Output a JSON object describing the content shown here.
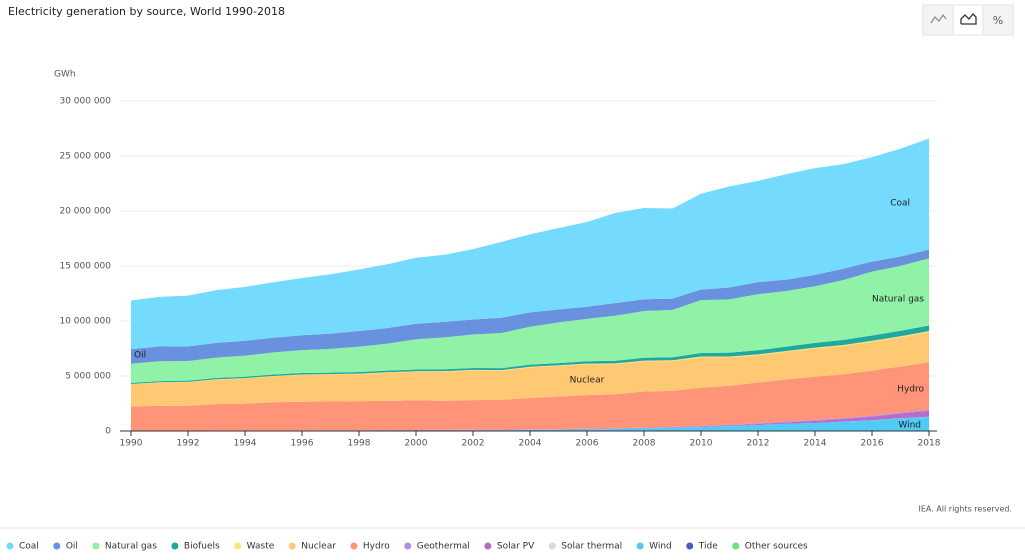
{
  "chart_data": {
    "type": "stacked-area",
    "title": "Electricity generation by source, World 1990-2018",
    "y_label": "GWh",
    "credit": "IEA. All rights reserved.",
    "controls": [
      "Line",
      "Area",
      "%"
    ],
    "x": [
      1990,
      1991,
      1992,
      1993,
      1994,
      1995,
      1996,
      1997,
      1998,
      1999,
      2000,
      2001,
      2002,
      2003,
      2004,
      2005,
      2006,
      2007,
      2008,
      2009,
      2010,
      2011,
      2012,
      2013,
      2014,
      2015,
      2016,
      2017,
      2018
    ],
    "xlim": [
      1990,
      2018
    ],
    "xticks": [
      1990,
      1992,
      1994,
      1996,
      1998,
      2000,
      2002,
      2004,
      2006,
      2008,
      2010,
      2012,
      2014,
      2016,
      2018
    ],
    "ylim": [
      0,
      30000000
    ],
    "yticks": [
      {
        "value": 0,
        "label": "0"
      },
      {
        "value": 5000000,
        "label": "5 000 000"
      },
      {
        "value": 10000000,
        "label": "10 000 000"
      },
      {
        "value": 15000000,
        "label": "15 000 000"
      },
      {
        "value": 20000000,
        "label": "20 000 000"
      },
      {
        "value": 25000000,
        "label": "25 000 000"
      },
      {
        "value": 30000000,
        "label": "30 000 000"
      }
    ],
    "grid": true,
    "annotations": [
      "Oil",
      "Nuclear",
      "Coal",
      "Natural gas",
      "Hydro",
      "Wind"
    ],
    "series": [
      {
        "name": "Coal",
        "color": "#74dbff",
        "values": [
          4425000,
          4520000,
          4610000,
          4800000,
          4900000,
          5050000,
          5200000,
          5400000,
          5600000,
          5800000,
          6000000,
          6100000,
          6400000,
          6900000,
          7100000,
          7400000,
          7700000,
          8200000,
          8300000,
          8200000,
          8700000,
          9200000,
          9200000,
          9600000,
          9700000,
          9500000,
          9500000,
          9800000,
          10100000
        ]
      },
      {
        "name": "Oil",
        "color": "#6a91dd",
        "values": [
          1320000,
          1340000,
          1330000,
          1330000,
          1350000,
          1330000,
          1360000,
          1380000,
          1420000,
          1420000,
          1410000,
          1410000,
          1360000,
          1380000,
          1300000,
          1180000,
          1110000,
          1150000,
          1070000,
          1020000,
          970000,
          1070000,
          1100000,
          1030000,
          1040000,
          1030000,
          910000,
          850000,
          800000
        ]
      },
      {
        "name": "Natural gas",
        "color": "#8ff2a6",
        "values": [
          1750000,
          1800000,
          1790000,
          1850000,
          1920000,
          2010000,
          2070000,
          2160000,
          2300000,
          2450000,
          2750000,
          2900000,
          3050000,
          3200000,
          3450000,
          3700000,
          3850000,
          4100000,
          4250000,
          4300000,
          4800000,
          4850000,
          5100000,
          5050000,
          5150000,
          5450000,
          5800000,
          5900000,
          6100000
        ]
      },
      {
        "name": "Biofuels",
        "color": "#1fa89d",
        "values": [
          100000,
          110000,
          115000,
          120000,
          125000,
          130000,
          135000,
          140000,
          145000,
          150000,
          155000,
          160000,
          170000,
          180000,
          190000,
          200000,
          215000,
          235000,
          255000,
          280000,
          320000,
          345000,
          375000,
          400000,
          430000,
          460000,
          480000,
          500000,
          520000
        ]
      },
      {
        "name": "Waste",
        "color": "#ffe27a",
        "values": [
          25000,
          28000,
          30000,
          33000,
          36000,
          40000,
          43000,
          46000,
          50000,
          52000,
          55000,
          58000,
          60000,
          63000,
          66000,
          68000,
          70000,
          72000,
          74000,
          76000,
          80000,
          85000,
          88000,
          90000,
          93000,
          98000,
          102000,
          106000,
          110000
        ]
      },
      {
        "name": "Nuclear",
        "color": "#ffc973",
        "values": [
          2010000,
          2110000,
          2130000,
          2230000,
          2290000,
          2350000,
          2440000,
          2430000,
          2460000,
          2560000,
          2590000,
          2650000,
          2690000,
          2640000,
          2770000,
          2770000,
          2800000,
          2740000,
          2740000,
          2700000,
          2760000,
          2580000,
          2470000,
          2490000,
          2540000,
          2570000,
          2610000,
          2640000,
          2710000
        ]
      },
      {
        "name": "Hydro",
        "color": "#ff9478",
        "values": [
          2190000,
          2240000,
          2250000,
          2390000,
          2430000,
          2560000,
          2600000,
          2630000,
          2640000,
          2650000,
          2700000,
          2640000,
          2690000,
          2700000,
          2850000,
          2960000,
          3050000,
          3090000,
          3280000,
          3280000,
          3480000,
          3530000,
          3700000,
          3830000,
          3950000,
          3970000,
          4100000,
          4180000,
          4320000
        ]
      },
      {
        "name": "Geothermal",
        "color": "#b28de8",
        "values": [
          36000,
          38000,
          39000,
          40000,
          41000,
          40000,
          42000,
          44000,
          46000,
          50000,
          52000,
          53000,
          54000,
          56000,
          57000,
          58000,
          59000,
          60000,
          65000,
          67000,
          68000,
          70000,
          70000,
          71000,
          74000,
          80000,
          82000,
          86000,
          89000
        ]
      },
      {
        "name": "Solar PV",
        "color": "#b56dc8",
        "values": [
          0,
          0,
          0,
          0,
          0,
          0,
          0,
          0,
          1000,
          1000,
          1000,
          1000,
          2000,
          2000,
          3000,
          4000,
          5000,
          7000,
          12000,
          20000,
          32000,
          62000,
          97000,
          134000,
          190000,
          250000,
          330000,
          440000,
          550000
        ]
      },
      {
        "name": "Solar thermal",
        "color": "#d9d9d9",
        "values": [
          1000,
          1000,
          1000,
          1000,
          1000,
          1000,
          1000,
          1000,
          1000,
          1000,
          1000,
          1000,
          1000,
          1000,
          1000,
          1000,
          1000,
          1000,
          1000,
          1000,
          2000,
          3000,
          5000,
          6000,
          9000,
          10000,
          11000,
          12000,
          12000
        ]
      },
      {
        "name": "Wind",
        "color": "#4fcbf5",
        "values": [
          4000,
          4000,
          5000,
          6000,
          7000,
          8000,
          9000,
          12000,
          16000,
          21000,
          31000,
          38000,
          52000,
          63000,
          85000,
          104000,
          133000,
          171000,
          220000,
          276000,
          342000,
          437000,
          524000,
          645000,
          712000,
          832000,
          958000,
          1134000,
          1273000
        ]
      },
      {
        "name": "Tide",
        "color": "#3d5fc2",
        "values": [
          1000,
          1000,
          1000,
          1000,
          1000,
          1000,
          1000,
          1000,
          1000,
          1000,
          1000,
          1000,
          1000,
          1000,
          1000,
          1000,
          1000,
          1000,
          1000,
          1000,
          1000,
          1000,
          1000,
          1000,
          1000,
          1000,
          1000,
          1000,
          1000
        ]
      },
      {
        "name": "Other sources",
        "color": "#6ee07c",
        "values": [
          5000,
          5000,
          5000,
          5000,
          5000,
          5000,
          6000,
          6000,
          6000,
          6000,
          6000,
          6000,
          6000,
          7000,
          7000,
          7000,
          7000,
          7000,
          8000,
          8000,
          8000,
          8000,
          9000,
          9000,
          9000,
          9000,
          10000,
          10000,
          10000
        ]
      }
    ]
  }
}
